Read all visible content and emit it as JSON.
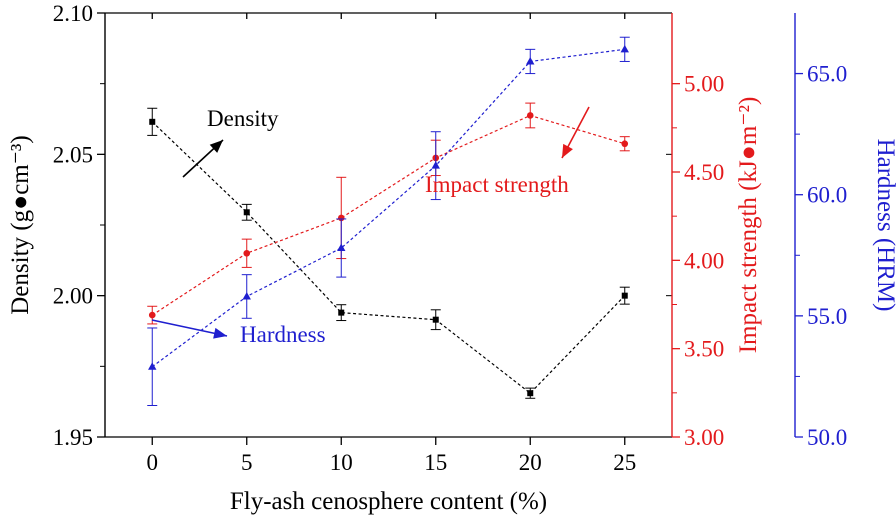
{
  "chart_data": {
    "type": "line",
    "xlabel": "Fly-ash cenosphere content (%)",
    "x": [
      0,
      5,
      10,
      15,
      20,
      25
    ],
    "xticks": [
      "0",
      "5",
      "10",
      "15",
      "20",
      "25"
    ],
    "xlim": [
      -2.5,
      27.5
    ],
    "axes": {
      "left": {
        "label": "Density (g●cm⁻³)",
        "lim": [
          1.95,
          2.1
        ],
        "ticks": [
          1.95,
          2.0,
          2.05,
          2.1
        ],
        "ticklabels": [
          "1.95",
          "2.00",
          "2.05",
          "2.10"
        ],
        "color": "#000000"
      },
      "right1": {
        "label": "Impact strength (kJ●m⁻²)",
        "lim": [
          3.0,
          5.4
        ],
        "ticks": [
          3.0,
          3.5,
          4.0,
          4.5,
          5.0
        ],
        "ticklabels": [
          "3.00",
          "3.50",
          "4.00",
          "4.50",
          "5.00"
        ],
        "color": "#e31a1c"
      },
      "right2": {
        "label": "Hardness (HRM)",
        "lim": [
          50,
          67.5
        ],
        "ticks": [
          50,
          55,
          60,
          65
        ],
        "ticklabels": [
          "50.0",
          "55.0",
          "60.0",
          "65.0"
        ],
        "color": "#1f1fcf"
      }
    },
    "series": [
      {
        "name": "Density",
        "axis": "left",
        "color": "#000000",
        "marker": "square",
        "values": [
          2.0615,
          2.0295,
          1.994,
          1.9915,
          1.9655,
          2.0
        ],
        "errors": [
          0.0048,
          0.0028,
          0.0028,
          0.0035,
          0.0018,
          0.003
        ]
      },
      {
        "name": "Impact strength",
        "axis": "right1",
        "color": "#e31a1c",
        "marker": "circle",
        "values": [
          3.69,
          4.04,
          4.24,
          4.58,
          4.82,
          4.66
        ],
        "errors": [
          0.05,
          0.08,
          0.23,
          0.1,
          0.07,
          0.04
        ]
      },
      {
        "name": "Hardness",
        "axis": "right2",
        "color": "#1f1fcf",
        "marker": "triangle",
        "values": [
          52.9,
          55.8,
          57.8,
          61.2,
          65.5,
          66.0
        ],
        "errors": [
          1.6,
          0.9,
          1.2,
          1.4,
          0.5,
          0.5
        ]
      }
    ],
    "annotations": [
      {
        "text": "Density",
        "series": "Density"
      },
      {
        "text": "Impact strength",
        "series": "Impact strength"
      },
      {
        "text": "Hardness",
        "series": "Hardness"
      }
    ]
  }
}
